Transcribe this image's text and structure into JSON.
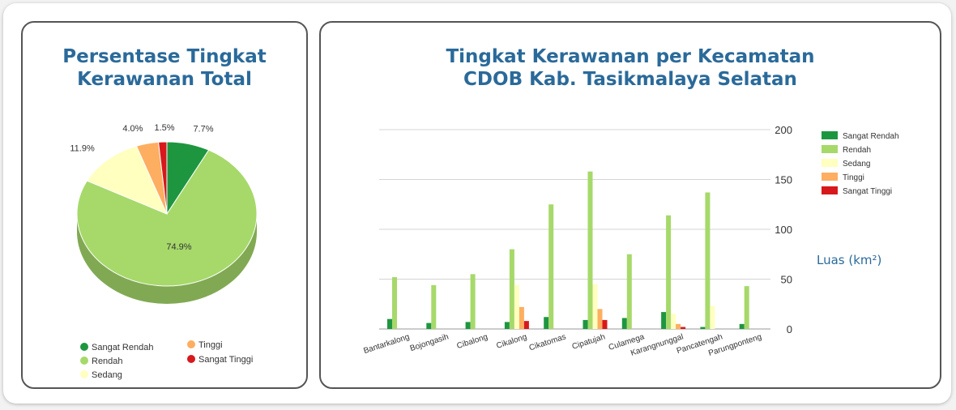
{
  "colors": {
    "sangat_rendah": "#1e9640",
    "rendah": "#a6d96a",
    "sedang": "#ffffc0",
    "tinggi": "#fdae61",
    "sangat_tinggi": "#d7191c"
  },
  "chart_data": [
    {
      "type": "pie",
      "title": "Persentase Tingkat\nKerawanan Total",
      "slices": [
        {
          "name": "Sangat Rendah",
          "value": 7.7,
          "label": "7.7%"
        },
        {
          "name": "Rendah",
          "value": 74.9,
          "label": "74.9%"
        },
        {
          "name": "Sedang",
          "value": 11.9,
          "label": "11.9%"
        },
        {
          "name": "Tinggi",
          "value": 4.0,
          "label": "4.0%"
        },
        {
          "name": "Sangat Tinggi",
          "value": 1.5,
          "label": "1.5%"
        }
      ],
      "legend_position": "bottom"
    },
    {
      "type": "bar",
      "title": "Tingkat Kerawanan per Kecamatan\nCDOB Kab. Tasikmalaya Selatan",
      "ylabel": "Luas (km²)",
      "ylim": [
        0,
        200
      ],
      "yticks": [
        "0",
        "50",
        "100",
        "150",
        "200"
      ],
      "grid": true,
      "legend_position": "right",
      "categories": [
        "Bantarkalong",
        "Bojongasih",
        "Cibalong",
        "Cikalong",
        "Cikatomas",
        "Cipatujah",
        "Culamega",
        "Karangnunggal",
        "Pancatengah",
        "Parungponteng"
      ],
      "series": [
        {
          "name": "Sangat Rendah",
          "values": [
            10,
            6,
            7,
            7,
            12,
            9,
            11,
            17,
            2,
            5
          ]
        },
        {
          "name": "Rendah",
          "values": [
            52,
            44,
            55,
            80,
            125,
            158,
            75,
            114,
            137,
            43
          ]
        },
        {
          "name": "Sedang",
          "values": [
            0,
            0,
            0,
            44,
            0,
            45,
            0,
            15,
            23,
            0
          ]
        },
        {
          "name": "Tinggi",
          "values": [
            0,
            0,
            0,
            22,
            0,
            20,
            0,
            5,
            0,
            0
          ]
        },
        {
          "name": "Sangat Tinggi",
          "values": [
            0,
            0,
            0,
            8,
            0,
            9,
            0,
            2,
            0,
            0
          ]
        }
      ]
    }
  ]
}
